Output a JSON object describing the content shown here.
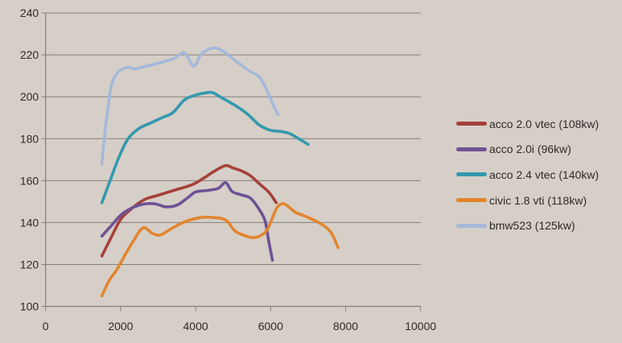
{
  "colors": {
    "background": "#D6CFC8",
    "gridline": "#847F7B",
    "axis": "#847F7B",
    "text": "#2E2A27"
  },
  "chart_data": {
    "type": "line",
    "title": "",
    "xlabel": "",
    "ylabel": "",
    "xlim": [
      0,
      10000
    ],
    "ylim": [
      100,
      240
    ],
    "x_ticks": [
      0,
      2000,
      4000,
      6000,
      8000,
      10000
    ],
    "y_ticks": [
      100,
      120,
      140,
      160,
      180,
      200,
      220,
      240
    ],
    "grid": "horizontal",
    "smooth": true,
    "legend_position": "right",
    "series": [
      {
        "id": "acco-20-vtec",
        "name": "acco 2.0 vtec (108kw)",
        "color": "#A5413A",
        "points": [
          [
            1500,
            124
          ],
          [
            1750,
            133
          ],
          [
            2000,
            141.5
          ],
          [
            2250,
            146
          ],
          [
            2500,
            149.5
          ],
          [
            2700,
            151.5
          ],
          [
            3000,
            153
          ],
          [
            3450,
            155.5
          ],
          [
            3900,
            158
          ],
          [
            4200,
            161
          ],
          [
            4500,
            164.5
          ],
          [
            4800,
            167.2
          ],
          [
            5000,
            166
          ],
          [
            5200,
            164.8
          ],
          [
            5450,
            162.5
          ],
          [
            5700,
            158.5
          ],
          [
            5950,
            154.5
          ],
          [
            6150,
            149.5
          ]
        ]
      },
      {
        "id": "acco-20i",
        "name": "acco 2.0i (96kw)",
        "color": "#6E5295",
        "points": [
          [
            1500,
            133.5
          ],
          [
            1750,
            138.5
          ],
          [
            2000,
            143.5
          ],
          [
            2250,
            146.5
          ],
          [
            2500,
            148.3
          ],
          [
            2700,
            149
          ],
          [
            2950,
            148.8
          ],
          [
            3200,
            147.5
          ],
          [
            3500,
            148.3
          ],
          [
            3800,
            152
          ],
          [
            4000,
            154.6
          ],
          [
            4300,
            155.3
          ],
          [
            4600,
            156.3
          ],
          [
            4800,
            159
          ],
          [
            4975,
            154.8
          ],
          [
            5200,
            153.3
          ],
          [
            5450,
            151.8
          ],
          [
            5650,
            147.5
          ],
          [
            5850,
            141
          ],
          [
            5950,
            131
          ],
          [
            6050,
            122
          ]
        ]
      },
      {
        "id": "acco-24-vtec",
        "name": "acco 2.4 vtec (140kw)",
        "color": "#3399AD",
        "points": [
          [
            1500,
            149.5
          ],
          [
            1700,
            159
          ],
          [
            1950,
            171
          ],
          [
            2200,
            180
          ],
          [
            2500,
            185
          ],
          [
            2800,
            187.5
          ],
          [
            3100,
            190
          ],
          [
            3400,
            192.5
          ],
          [
            3700,
            198.5
          ],
          [
            4000,
            200.8
          ],
          [
            4250,
            201.8
          ],
          [
            4450,
            202
          ],
          [
            4650,
            200
          ],
          [
            4900,
            197.5
          ],
          [
            5150,
            194.8
          ],
          [
            5400,
            191.5
          ],
          [
            5700,
            186.5
          ],
          [
            6000,
            184
          ],
          [
            6250,
            183.5
          ],
          [
            6500,
            182.5
          ],
          [
            6750,
            180
          ],
          [
            7000,
            177.3
          ]
        ]
      },
      {
        "id": "civic-18-vti",
        "name": "civic 1.8 vti (118kw)",
        "color": "#E2852E",
        "points": [
          [
            1500,
            105
          ],
          [
            1700,
            112.5
          ],
          [
            1900,
            117.5
          ],
          [
            2100,
            124
          ],
          [
            2350,
            131.5
          ],
          [
            2600,
            137.5
          ],
          [
            2850,
            134.8
          ],
          [
            3050,
            134
          ],
          [
            3300,
            136.5
          ],
          [
            3600,
            139.5
          ],
          [
            3900,
            141.5
          ],
          [
            4200,
            142.5
          ],
          [
            4500,
            142.3
          ],
          [
            4800,
            141.2
          ],
          [
            5050,
            136
          ],
          [
            5300,
            133.8
          ],
          [
            5550,
            132.8
          ],
          [
            5800,
            134.5
          ],
          [
            5950,
            138
          ],
          [
            6150,
            146.5
          ],
          [
            6300,
            149
          ],
          [
            6450,
            148
          ],
          [
            6650,
            145
          ],
          [
            6900,
            143.2
          ],
          [
            7300,
            139.8
          ],
          [
            7600,
            135.5
          ],
          [
            7800,
            128
          ]
        ]
      },
      {
        "id": "bmw523",
        "name": "bmw523 (125kw)",
        "color": "#A5B8DA",
        "points": [
          [
            1500,
            168
          ],
          [
            1600,
            186
          ],
          [
            1750,
            205
          ],
          [
            1900,
            211
          ],
          [
            2000,
            212.8
          ],
          [
            2175,
            214
          ],
          [
            2400,
            213.3
          ],
          [
            2600,
            214.3
          ],
          [
            2900,
            215.5
          ],
          [
            3200,
            217
          ],
          [
            3450,
            218.5
          ],
          [
            3700,
            221
          ],
          [
            3950,
            214.7
          ],
          [
            4150,
            220.5
          ],
          [
            4400,
            223
          ],
          [
            4550,
            223.3
          ],
          [
            4750,
            221.5
          ],
          [
            5050,
            217.4
          ],
          [
            5300,
            214
          ],
          [
            5500,
            211.6
          ],
          [
            5700,
            209.5
          ],
          [
            5850,
            205
          ],
          [
            5950,
            201
          ],
          [
            6100,
            195
          ],
          [
            6200,
            191.5
          ]
        ]
      }
    ]
  }
}
